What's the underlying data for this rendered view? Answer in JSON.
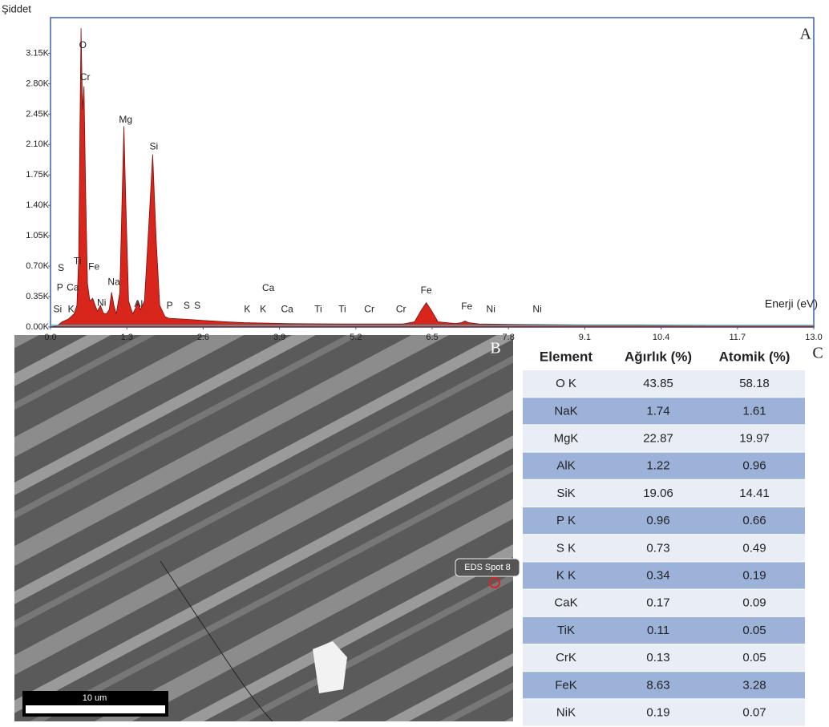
{
  "chart_data": {
    "type": "area",
    "y_label": "Şiddet",
    "x_label": "Enerji (eV)",
    "panel_label": "A",
    "color": "#d9261c",
    "xlim": [
      0,
      13
    ],
    "xticks": [
      {
        "value": 0,
        "label": "0.0"
      },
      1.3,
      2.6,
      3.9,
      5.2,
      6.5,
      7.8,
      9.1,
      10.4,
      11.7,
      {
        "value": 13,
        "label": "13.0"
      }
    ],
    "ylim": [
      0,
      3560
    ],
    "yticks": [
      {
        "value": 0,
        "label": "0.00K"
      },
      {
        "value": 350,
        "label": "0.35K"
      },
      {
        "value": 700,
        "label": "0.70K"
      },
      {
        "value": 1050,
        "label": "1.05K"
      },
      {
        "value": 1400,
        "label": "1.40K"
      },
      {
        "value": 1750,
        "label": "1.75K"
      },
      {
        "value": 2100,
        "label": "2.10K"
      },
      {
        "value": 2450,
        "label": "2.45K"
      },
      {
        "value": 2800,
        "label": "2.80K"
      },
      {
        "value": 3150,
        "label": "3.15K"
      }
    ],
    "x": [
      0,
      0.1,
      0.2,
      0.3,
      0.4,
      0.45,
      0.48,
      0.5,
      0.52,
      0.545,
      0.57,
      0.6,
      0.63,
      0.67,
      0.72,
      0.76,
      0.8,
      0.85,
      0.9,
      0.95,
      1.0,
      1.04,
      1.08,
      1.12,
      1.18,
      1.22,
      1.25,
      1.28,
      1.33,
      1.4,
      1.45,
      1.49,
      1.53,
      1.6,
      1.66,
      1.74,
      1.8,
      1.86,
      1.95,
      2.02,
      2.3,
      2.5,
      3.0,
      3.3,
      3.7,
      4.0,
      5.0,
      6.0,
      6.2,
      6.32,
      6.4,
      6.48,
      6.6,
      6.9,
      7.0,
      7.06,
      7.12,
      7.3,
      8,
      9,
      10,
      11,
      12,
      13
    ],
    "values": [
      0,
      10,
      60,
      90,
      150,
      250,
      800,
      2200,
      3440,
      2500,
      2770,
      1500,
      500,
      300,
      330,
      250,
      180,
      250,
      160,
      150,
      200,
      400,
      250,
      150,
      400,
      1500,
      2310,
      1500,
      300,
      150,
      220,
      300,
      200,
      300,
      1000,
      1985,
      1000,
      250,
      120,
      100,
      90,
      80,
      60,
      50,
      45,
      40,
      35,
      35,
      60,
      200,
      280,
      200,
      60,
      40,
      50,
      70,
      50,
      35,
      30,
      25,
      25,
      20,
      18,
      18
    ],
    "annotations": [
      {
        "text": "O",
        "x": 0.55,
        "y": 3240
      },
      {
        "text": "Cr",
        "x": 0.59,
        "y": 2870
      },
      {
        "text": "Mg",
        "x": 1.28,
        "y": 2380
      },
      {
        "text": "Si",
        "x": 1.76,
        "y": 2070
      },
      {
        "text": "S",
        "x": 0.18,
        "y": 675
      },
      {
        "text": "Ti",
        "x": 0.46,
        "y": 755
      },
      {
        "text": "Fe",
        "x": 0.74,
        "y": 690
      },
      {
        "text": "P",
        "x": 0.16,
        "y": 450
      },
      {
        "text": "Ca",
        "x": 0.38,
        "y": 450
      },
      {
        "text": "Na",
        "x": 1.08,
        "y": 515
      },
      {
        "text": "Si",
        "x": 0.12,
        "y": 200
      },
      {
        "text": "K",
        "x": 0.35,
        "y": 200
      },
      {
        "text": "Ni",
        "x": 0.87,
        "y": 275
      },
      {
        "text": "Al",
        "x": 1.5,
        "y": 260
      },
      {
        "text": "P",
        "x": 2.03,
        "y": 240
      },
      {
        "text": "S",
        "x": 2.32,
        "y": 240
      },
      {
        "text": "S",
        "x": 2.5,
        "y": 240
      },
      {
        "text": "K",
        "x": 3.35,
        "y": 200
      },
      {
        "text": "K",
        "x": 3.62,
        "y": 200
      },
      {
        "text": "Ca",
        "x": 3.71,
        "y": 445
      },
      {
        "text": "Ca",
        "x": 4.03,
        "y": 200
      },
      {
        "text": "Ti",
        "x": 4.56,
        "y": 200
      },
      {
        "text": "Ti",
        "x": 4.97,
        "y": 200
      },
      {
        "text": "Cr",
        "x": 5.43,
        "y": 200
      },
      {
        "text": "Cr",
        "x": 5.97,
        "y": 200
      },
      {
        "text": "Fe",
        "x": 6.4,
        "y": 415
      },
      {
        "text": "Fe",
        "x": 7.09,
        "y": 230
      },
      {
        "text": "Ni",
        "x": 7.5,
        "y": 200
      },
      {
        "text": "Ni",
        "x": 8.29,
        "y": 200
      }
    ]
  },
  "image": {
    "panel_label": "B",
    "spot_label": "EDS Spot 8",
    "scale_bar": "10 um"
  },
  "table": {
    "panel_label": "C",
    "columns": [
      "Element",
      "Ağırlık (%)",
      "Atomik (%)"
    ],
    "rows": [
      [
        "O K",
        "43.85",
        "58.18"
      ],
      [
        "NaK",
        "1.74",
        "1.61"
      ],
      [
        "MgK",
        "22.87",
        "19.97"
      ],
      [
        "AlK",
        "1.22",
        "0.96"
      ],
      [
        "SiK",
        "19.06",
        "14.41"
      ],
      [
        "P K",
        "0.96",
        "0.66"
      ],
      [
        "S K",
        "0.73",
        "0.49"
      ],
      [
        "K K",
        "0.34",
        "0.19"
      ],
      [
        "CaK",
        "0.17",
        "0.09"
      ],
      [
        "TiK",
        "0.11",
        "0.05"
      ],
      [
        "CrK",
        "0.13",
        "0.05"
      ],
      [
        "FeK",
        "8.63",
        "3.28"
      ],
      [
        "NiK",
        "0.19",
        "0.07"
      ]
    ]
  }
}
